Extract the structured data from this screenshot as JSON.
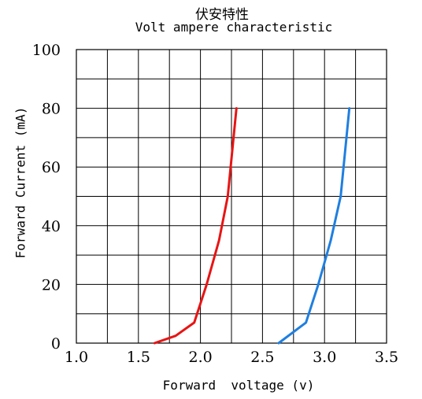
{
  "chart_data": {
    "type": "line",
    "title": "伏安特性",
    "subtitle": "Volt ampere characteristic",
    "xlabel": "Forward  voltage (v)",
    "ylabel": "Forward Current (mA)",
    "xlim": [
      1.0,
      3.5
    ],
    "ylim": [
      0,
      100
    ],
    "x_ticks": [
      1.0,
      1.5,
      2.0,
      2.5,
      3.0,
      3.5
    ],
    "x_tick_labels": [
      "1.0",
      "1.5",
      "2.0",
      "2.5",
      "3.0",
      "3.5"
    ],
    "y_ticks": [
      0,
      20,
      40,
      60,
      80,
      100
    ],
    "y_tick_labels": [
      "0",
      "20",
      "40",
      "60",
      "80",
      "100"
    ],
    "x_minor_step": 0.25,
    "y_minor_step": 10,
    "grid": true,
    "legend": "none",
    "series": [
      {
        "color": "#e81414",
        "x": [
          1.63,
          1.8,
          1.95,
          2.05,
          2.15,
          2.22,
          2.29
        ],
        "y": [
          0,
          2.5,
          7,
          20,
          35,
          50,
          80
        ]
      },
      {
        "color": "#1f7fe0",
        "x": [
          2.63,
          2.85,
          2.95,
          3.05,
          3.13,
          3.2
        ],
        "y": [
          0,
          7,
          20,
          35,
          50,
          80
        ]
      }
    ]
  }
}
